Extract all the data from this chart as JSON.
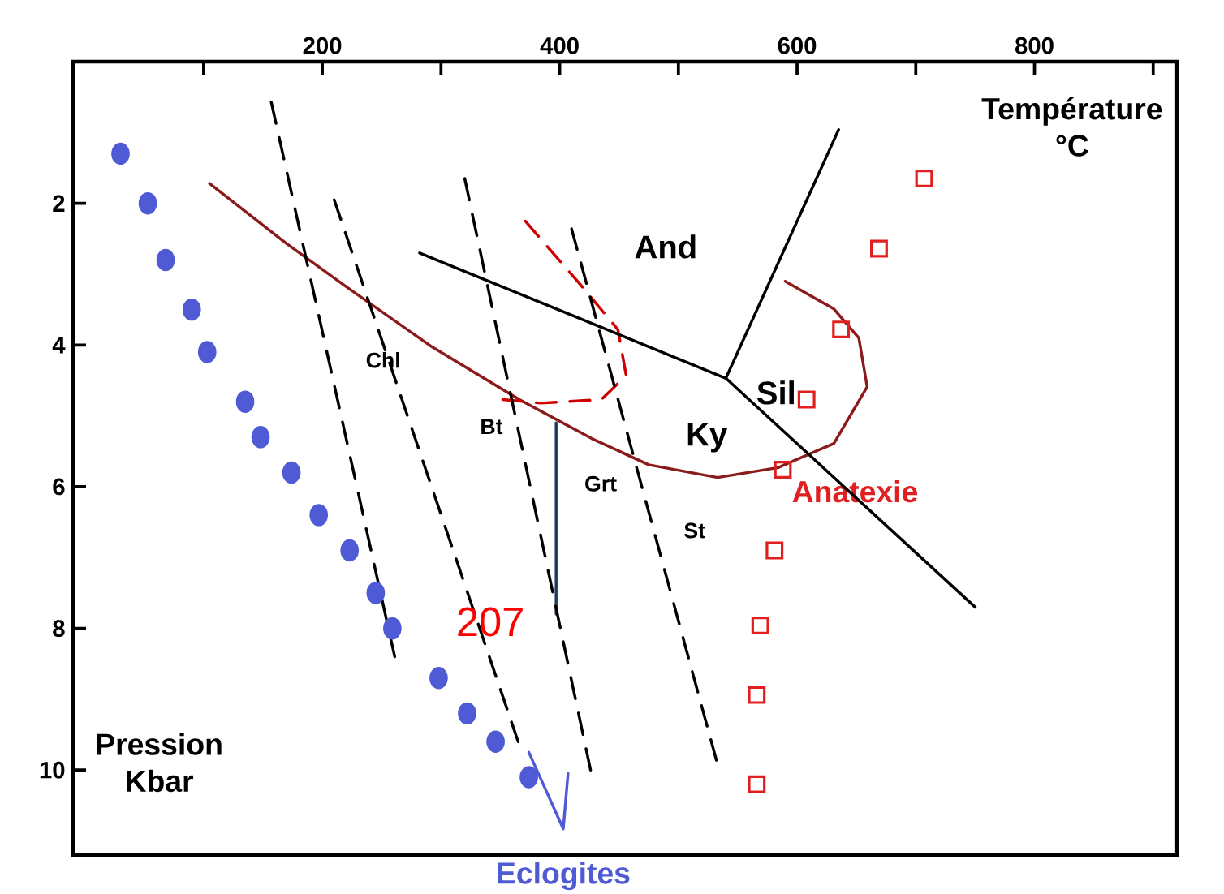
{
  "chart_data": {
    "type": "line",
    "xlabel": "Température °C",
    "ylabel": "Pression Kbar",
    "xlim": [
      -10,
      920
    ],
    "ylim": [
      11.2,
      0
    ],
    "xticks": [
      {
        "value": 100,
        "label": null
      },
      200,
      {
        "value": 300,
        "label": null
      },
      400,
      {
        "value": 500,
        "label": null
      },
      600,
      {
        "value": 700,
        "label": null
      },
      800,
      {
        "value": 900,
        "label": null
      }
    ],
    "yticks": [
      2,
      4,
      6,
      8,
      10
    ],
    "series": [
      {
        "type": "scatter",
        "color": "#4f5bd5",
        "marker": "circle",
        "x": [
          30,
          53,
          68,
          90,
          103,
          135,
          148,
          174,
          197,
          223,
          245,
          259,
          298,
          322,
          346,
          374
        ],
        "values": [
          1.3,
          2.0,
          2.8,
          3.5,
          4.1,
          4.8,
          5.3,
          5.8,
          6.4,
          6.9,
          7.5,
          8.0,
          8.7,
          9.2,
          9.6,
          10.1
        ]
      },
      {
        "name": "Eclogites",
        "color": "#4f5bd5",
        "x": [
          374,
          403,
          407
        ],
        "values": [
          9.75,
          10.83,
          10.05
        ]
      },
      {
        "type": "scatter",
        "name": "Anatexie",
        "color": "#e02020",
        "marker": "square",
        "x": [
          707,
          669,
          637,
          608,
          588,
          581,
          569,
          566,
          566
        ],
        "values": [
          1.65,
          2.64,
          3.78,
          4.77,
          5.76,
          6.9,
          7.96,
          8.94,
          10.2
        ]
      },
      {
        "color": "#8b1a1a",
        "x": [
          105,
          170,
          223,
          291,
          366,
          427,
          475,
          533,
          584,
          631,
          659,
          652,
          631,
          590
        ],
        "values": [
          1.72,
          2.57,
          3.21,
          4.01,
          4.77,
          5.32,
          5.69,
          5.87,
          5.73,
          5.39,
          4.59,
          3.9,
          3.49,
          3.1
        ]
      },
      {
        "color": "#d00000",
        "line_style": "dashed",
        "x": [
          352,
          384,
          435,
          456,
          449,
          416,
          371
        ],
        "values": [
          4.77,
          4.82,
          4.77,
          4.43,
          3.78,
          3.12,
          2.25
        ]
      },
      {
        "color": "#1f3a5f",
        "x": [
          397,
          397
        ],
        "values": [
          7.8,
          5.1
        ]
      },
      {
        "color": "#000000",
        "x": [
          282,
          540,
          750,
          null,
          540,
          635
        ],
        "values": [
          2.7,
          4.47,
          7.7,
          null,
          4.47,
          0.96
        ]
      },
      {
        "color": "#000000",
        "line_style": "dashed",
        "x": [
          157,
          261
        ],
        "values": [
          0.57,
          8.4
        ]
      },
      {
        "color": "#000000",
        "line_style": "dashed",
        "x": [
          210,
          365
        ],
        "values": [
          1.95,
          9.6
        ]
      },
      {
        "color": "#000000",
        "line_style": "dashed",
        "x": [
          320,
          426
        ],
        "values": [
          1.65,
          10.0
        ]
      },
      {
        "color": "#000000",
        "line_style": "dashed",
        "x": [
          410,
          532
        ],
        "values": [
          2.36,
          9.86
        ]
      }
    ],
    "annotations": [
      "And",
      "Sil",
      "Ky",
      "Chl",
      "Bt",
      "Grt",
      "St",
      "207"
    ]
  }
}
